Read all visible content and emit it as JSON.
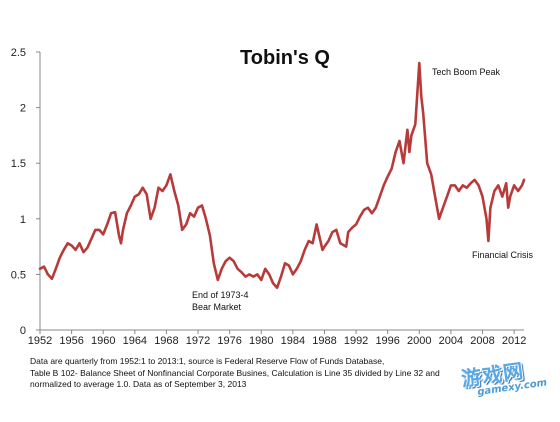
{
  "chart_data": {
    "type": "line",
    "title": "Tobin's Q",
    "xlabel": "",
    "ylabel": "",
    "xlim": [
      1952,
      2013.25
    ],
    "ylim": [
      0,
      2.5
    ],
    "grid": false,
    "legend": "none",
    "line_color": "#b83b3b",
    "x_ticks": [
      "1952",
      "1956",
      "1960",
      "1964",
      "1968",
      "1972",
      "1976",
      "1980",
      "1984",
      "1988",
      "1992",
      "1996",
      "2000",
      "2004",
      "2008",
      "2012"
    ],
    "y_ticks": [
      "0",
      "0.5",
      "1",
      "1.5",
      "2",
      "2.5"
    ],
    "series": [
      {
        "x": [
          1952,
          1952.5,
          1953,
          1953.5,
          1954,
          1954.5,
          1955,
          1955.5,
          1956,
          1956.5,
          1957,
          1957.5,
          1958,
          1958.5,
          1959,
          1959.5,
          1960,
          1960.5,
          1961,
          1961.5,
          1962,
          1962.25,
          1962.5,
          1963,
          1963.5,
          1964,
          1964.5,
          1965,
          1965.5,
          1966,
          1966.5,
          1967,
          1967.5,
          1968,
          1968.5,
          1969,
          1969.5,
          1970,
          1970.5,
          1971,
          1971.5,
          1972,
          1972.5,
          1973,
          1973.5,
          1974,
          1974.5,
          1975,
          1975.5,
          1976,
          1976.5,
          1977,
          1977.5,
          1978,
          1978.5,
          1979,
          1979.5,
          1980,
          1980.5,
          1981,
          1981.5,
          1982,
          1982.5,
          1983,
          1983.5,
          1984,
          1984.5,
          1985,
          1985.5,
          1986,
          1986.5,
          1987,
          1987.75,
          1988,
          1988.5,
          1989,
          1989.5,
          1990,
          1990.75,
          1991,
          1991.5,
          1992,
          1992.5,
          1993,
          1993.5,
          1994,
          1994.5,
          1995,
          1995.5,
          1996,
          1996.5,
          1997,
          1997.5,
          1998,
          1998.5,
          1998.75,
          1999,
          1999.5,
          2000,
          2000.25,
          2000.5,
          2001,
          2001.5,
          2002,
          2002.5,
          2002.75,
          2003,
          2003.5,
          2004,
          2004.5,
          2005,
          2005.5,
          2006,
          2006.5,
          2007,
          2007.5,
          2008,
          2008.5,
          2008.75,
          2009,
          2009.5,
          2010,
          2010.5,
          2011,
          2011.25,
          2011.5,
          2012,
          2012.5,
          2013,
          2013.25
        ],
        "values": [
          0.55,
          0.57,
          0.5,
          0.46,
          0.55,
          0.65,
          0.72,
          0.78,
          0.76,
          0.72,
          0.78,
          0.7,
          0.74,
          0.82,
          0.9,
          0.9,
          0.86,
          0.95,
          1.05,
          1.06,
          0.85,
          0.78,
          0.9,
          1.05,
          1.12,
          1.2,
          1.22,
          1.28,
          1.22,
          1.0,
          1.1,
          1.28,
          1.25,
          1.3,
          1.4,
          1.25,
          1.12,
          0.9,
          0.95,
          1.05,
          1.02,
          1.1,
          1.12,
          1.0,
          0.85,
          0.6,
          0.45,
          0.55,
          0.62,
          0.65,
          0.62,
          0.55,
          0.52,
          0.48,
          0.5,
          0.48,
          0.5,
          0.45,
          0.55,
          0.5,
          0.42,
          0.38,
          0.48,
          0.6,
          0.58,
          0.5,
          0.55,
          0.62,
          0.72,
          0.8,
          0.78,
          0.95,
          0.72,
          0.75,
          0.8,
          0.88,
          0.9,
          0.78,
          0.75,
          0.88,
          0.92,
          0.95,
          1.02,
          1.08,
          1.1,
          1.05,
          1.1,
          1.2,
          1.3,
          1.38,
          1.45,
          1.6,
          1.7,
          1.5,
          1.8,
          1.6,
          1.75,
          1.85,
          2.4,
          2.1,
          1.95,
          1.5,
          1.4,
          1.2,
          1.0,
          1.05,
          1.1,
          1.2,
          1.3,
          1.3,
          1.25,
          1.3,
          1.28,
          1.32,
          1.35,
          1.3,
          1.2,
          1.0,
          0.8,
          1.1,
          1.25,
          1.3,
          1.2,
          1.32,
          1.1,
          1.2,
          1.3,
          1.25,
          1.3,
          1.35
        ]
      }
    ],
    "annotations": [
      {
        "text": "Tech Boom Peak"
      },
      {
        "text": "Financial Crisis"
      },
      {
        "lines": [
          "End of 1973-4",
          "Bear Market"
        ]
      }
    ]
  },
  "footnote": {
    "lines": [
      "Data are quarterly from 1952:1 to 2013:1, source is Federal Reserve Flow of Funds Database,",
      "Table B 102- Balance Sheet of Nonfinancial Corporate Busines, Calculation is Line 35 divided by Line 32 and",
      "normalized to average 1.0. Data  as of September 3, 2013"
    ]
  },
  "watermark": {
    "logo": "游戏网",
    "sub": "gamexy.com"
  }
}
